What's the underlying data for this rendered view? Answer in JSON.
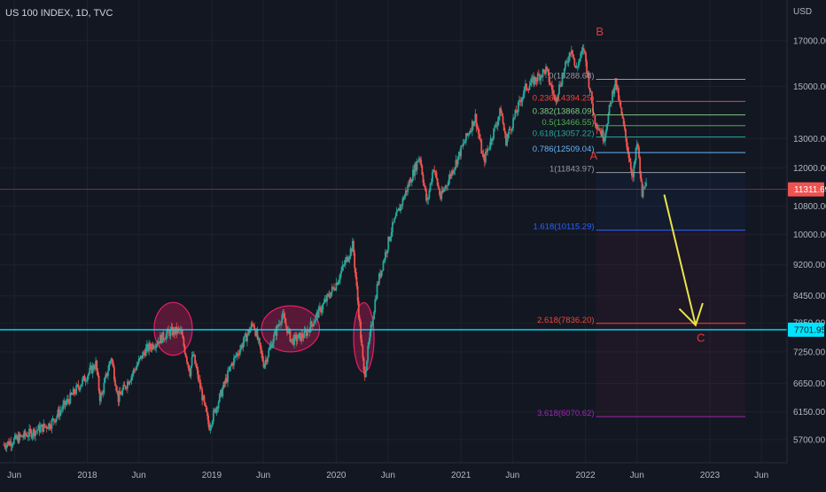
{
  "header": {
    "title": "US 100 INDEX, 1D, TVC"
  },
  "colors": {
    "background": "#131722",
    "grid": "#1e222d",
    "up": "#26a69a",
    "down": "#ef5350",
    "cyan_line": "#00e5ff",
    "projection_arrow": "#e8e34a",
    "wave_label": "#e53935",
    "ellipse": "#e91e63"
  },
  "chart_data": {
    "type": "candlestick",
    "title": "US 100 INDEX, 1D, TVC",
    "currency_label": "USD",
    "y_scale": "log",
    "ylim": [
      5350,
      19000
    ],
    "xlim": [
      "2017-04-20",
      "2023-08-15"
    ],
    "y_ticks": [
      "17000.00",
      "15000.00",
      "13000.00",
      "12000.00",
      "10800.00",
      "10000.00",
      "9200.00",
      "8450.00",
      "7850.00",
      "7250.00",
      "6650.00",
      "6150.00",
      "5700.00"
    ],
    "x_ticks": [
      {
        "label": "Jun",
        "date": "2017-06-01"
      },
      {
        "label": "2018",
        "date": "2018-01-01"
      },
      {
        "label": "Jun",
        "date": "2018-06-01"
      },
      {
        "label": "2019",
        "date": "2019-01-01"
      },
      {
        "label": "Jun",
        "date": "2019-06-01"
      },
      {
        "label": "2020",
        "date": "2020-01-01"
      },
      {
        "label": "Jun",
        "date": "2020-06-01"
      },
      {
        "label": "2021",
        "date": "2021-01-01"
      },
      {
        "label": "Jun",
        "date": "2021-06-01"
      },
      {
        "label": "2022",
        "date": "2022-01-01"
      },
      {
        "label": "Jun",
        "date": "2022-06-01"
      },
      {
        "label": "2023",
        "date": "2023-01-01"
      },
      {
        "label": "Jun",
        "date": "2023-06-01"
      }
    ],
    "price_path": [
      [
        "2017-05-01",
        5620
      ],
      [
        "2017-09-15",
        5950
      ],
      [
        "2018-01-26",
        7020
      ],
      [
        "2018-02-08",
        6350
      ],
      [
        "2018-03-12",
        7150
      ],
      [
        "2018-04-02",
        6380
      ],
      [
        "2018-06-20",
        7280
      ],
      [
        "2018-08-29",
        7650
      ],
      [
        "2018-10-01",
        7680
      ],
      [
        "2018-10-29",
        6860
      ],
      [
        "2018-11-07",
        7200
      ],
      [
        "2018-12-24",
        5900
      ],
      [
        "2019-02-28",
        7000
      ],
      [
        "2019-05-03",
        7850
      ],
      [
        "2019-06-03",
        7000
      ],
      [
        "2019-07-26",
        8020
      ],
      [
        "2019-08-23",
        7470
      ],
      [
        "2019-10-02",
        7600
      ],
      [
        "2019-12-31",
        8730
      ],
      [
        "2020-02-19",
        9720
      ],
      [
        "2020-03-23",
        6770
      ],
      [
        "2020-05-01",
        8720
      ],
      [
        "2020-06-10",
        10100
      ],
      [
        "2020-09-02",
        12420
      ],
      [
        "2020-09-23",
        10850
      ],
      [
        "2020-10-12",
        12050
      ],
      [
        "2020-11-02",
        11050
      ],
      [
        "2021-02-12",
        13800
      ],
      [
        "2021-03-08",
        12210
      ],
      [
        "2021-04-28",
        14060
      ],
      [
        "2021-05-12",
        12900
      ],
      [
        "2021-07-07",
        14900
      ],
      [
        "2021-09-07",
        15700
      ],
      [
        "2021-10-04",
        14450
      ],
      [
        "2021-11-22",
        16760
      ],
      [
        "2021-12-02",
        15650
      ],
      [
        "2021-12-27",
        16640
      ],
      [
        "2022-01-27",
        13720
      ],
      [
        "2022-02-24",
        13020
      ],
      [
        "2022-03-29",
        15270
      ],
      [
        "2022-05-20",
        11680
      ],
      [
        "2022-06-02",
        12900
      ],
      [
        "2022-06-16",
        11100
      ],
      [
        "2022-06-24",
        11610
      ],
      [
        "2022-06-30",
        11311.69
      ]
    ],
    "fib_levels": [
      {
        "label": "0(15288.68)",
        "value": 15288.68,
        "color": "#9598a1"
      },
      {
        "label": "0.236(14394.25)",
        "value": 14394.25,
        "color": "#f44336"
      },
      {
        "label": "0.382(13868.09)",
        "value": 13868.09,
        "color": "#81c784"
      },
      {
        "label": "0.5(13466.55)",
        "value": 13466.55,
        "color": "#4caf50"
      },
      {
        "label": "0.618(13057.22)",
        "value": 13057.22,
        "color": "#26a69a"
      },
      {
        "label": "0.786(12509.04)",
        "value": 12509.04,
        "color": "#64b5f6"
      },
      {
        "label": "1(11843.97)",
        "value": 11843.97,
        "color": "#9598a1"
      },
      {
        "label": "1.618(10115.29)",
        "value": 10115.29,
        "color": "#2962ff"
      },
      {
        "label": "2.618(7836.20)",
        "value": 7836.2,
        "color": "#f44336"
      },
      {
        "label": "3.618(6070.62)",
        "value": 6070.62,
        "color": "#9c27b0"
      }
    ],
    "fib_range": {
      "start": "2022-02-01",
      "end": "2023-04-15"
    },
    "support_line": {
      "value": 7701.95,
      "label": "7701.95"
    },
    "current_price": {
      "value": 11311.69,
      "label": "11311.69"
    },
    "wave_labels": [
      {
        "text": "B",
        "date": "2022-02-12",
        "value": 17250
      },
      {
        "text": "A",
        "date": "2022-01-25",
        "value": 12280
      },
      {
        "text": "C",
        "date": "2022-12-05",
        "value": 7450
      }
    ],
    "projection_arrow": {
      "from": [
        "2022-08-20",
        11150
      ],
      "to": [
        "2022-11-20",
        7800
      ]
    },
    "highlight_ellipses": [
      {
        "date": "2018-09-10",
        "value": 7720,
        "span_days": 56,
        "span_ratio": 1.075
      },
      {
        "date": "2019-08-20",
        "value": 7720,
        "span_days": 85,
        "span_ratio": 1.065
      },
      {
        "date": "2020-03-22",
        "value": 7540,
        "span_days": 30,
        "span_ratio": 1.1
      }
    ]
  }
}
